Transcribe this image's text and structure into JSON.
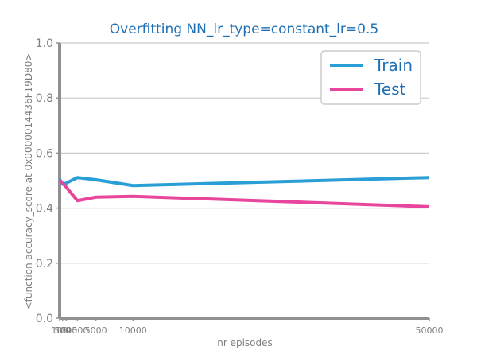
{
  "colors": {
    "title": "#1f6fb4",
    "axis": "#909090",
    "grid": "#cccccc",
    "train": "#2a9fd6",
    "test": "#e8459c",
    "legend_text": "#1f6fb4"
  },
  "chart_data": {
    "type": "line",
    "title": "Overfitting NN_lr_type=constant_lr=0.5",
    "xlabel": "nr episodes",
    "ylabel": "<function accuracy_score at 0x000001443​6F19D80>",
    "ylim": [
      0.0,
      1.0
    ],
    "xlim": [
      100,
      50000
    ],
    "yticks": [
      "0.0",
      "0.2",
      "0.4",
      "0.6",
      "0.8",
      "1.0"
    ],
    "xticks": [
      "100",
      "500",
      "1000",
      "2500",
      "5000",
      "10000",
      "50000"
    ],
    "x": [
      100,
      500,
      1000,
      2500,
      5000,
      10000,
      50000
    ],
    "grid": true,
    "legend_position": "top-right",
    "series": [
      {
        "name": "Train",
        "values": [
          0.505,
          0.487,
          0.491,
          0.511,
          0.503,
          0.482,
          0.511
        ]
      },
      {
        "name": "Test",
        "values": [
          0.5,
          0.491,
          0.476,
          0.427,
          0.44,
          0.443,
          0.405
        ]
      }
    ]
  }
}
